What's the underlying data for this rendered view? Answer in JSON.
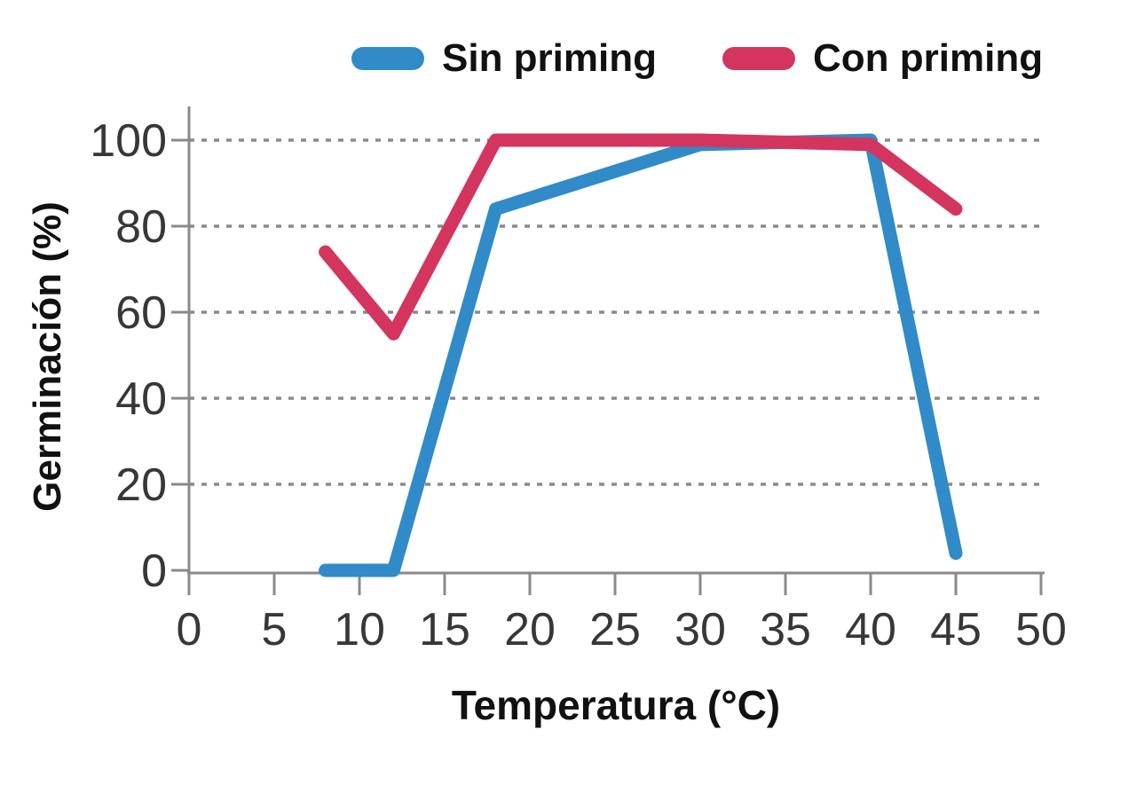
{
  "chart_data": {
    "type": "line",
    "title": "",
    "xlabel": "Temperatura (°C)",
    "ylabel": "Germinación (%)",
    "xlim": [
      0,
      50
    ],
    "ylim": [
      0,
      100
    ],
    "x_ticks": [
      0,
      5,
      10,
      15,
      20,
      25,
      30,
      35,
      40,
      45,
      50
    ],
    "y_ticks": [
      0,
      20,
      40,
      60,
      80,
      100
    ],
    "grid": "horizontal dashed gridlines at each y tick",
    "legend_position": "top-center",
    "axis_color": "#8a8a8a",
    "tick_label_color": "#373737",
    "x": [
      8,
      12,
      18,
      30,
      40,
      45
    ],
    "series": [
      {
        "name": "Sin priming",
        "color": "#308bc8",
        "values": [
          0,
          0,
          84,
          99,
          100,
          4
        ]
      },
      {
        "name": "Con priming",
        "color": "#d4355f",
        "values": [
          74,
          55,
          100,
          100,
          99,
          84
        ]
      }
    ]
  }
}
